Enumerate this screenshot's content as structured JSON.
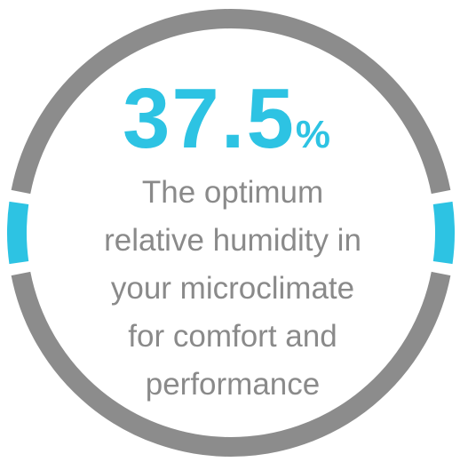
{
  "stat": {
    "value": 37.5,
    "unit": "%"
  },
  "caption": [
    "The optimum",
    "relative humidity in",
    "your microclimate",
    "for comfort and",
    "performance"
  ]
}
